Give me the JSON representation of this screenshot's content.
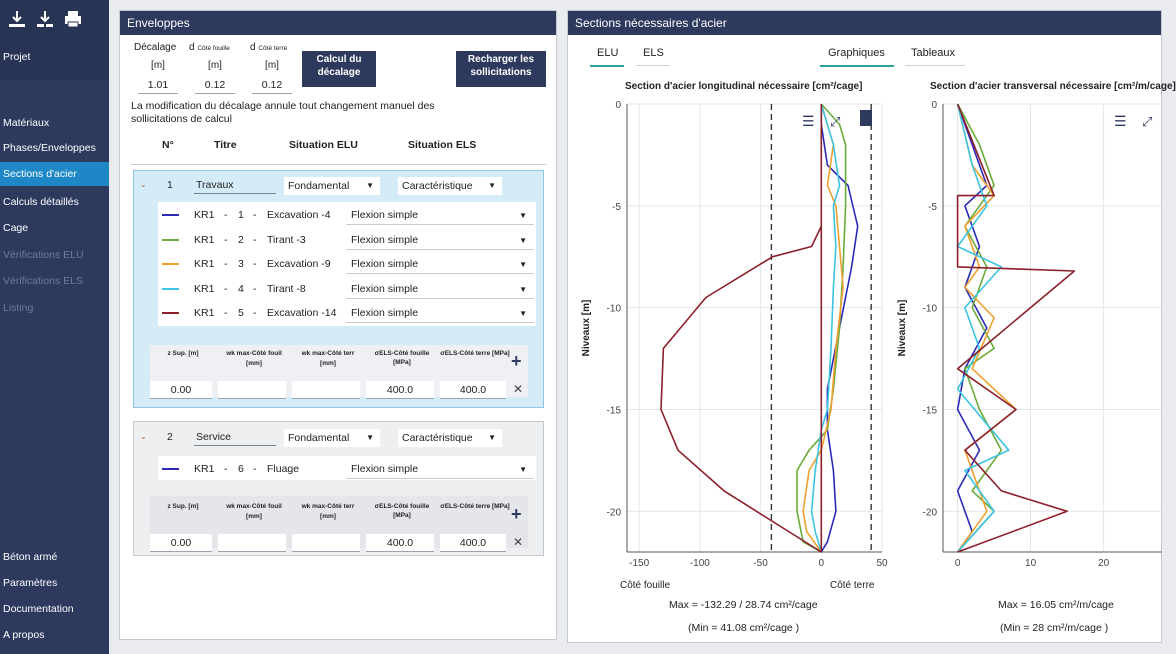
{
  "sidebar": {
    "projet": "Projet",
    "items": [
      {
        "label": "Matériaux",
        "state": "normal"
      },
      {
        "label": "Phases/Enveloppes",
        "state": "normal"
      },
      {
        "label": "Sections d'acier",
        "state": "active"
      },
      {
        "label": "Calculs détaillés",
        "state": "normal"
      },
      {
        "label": "Cage",
        "state": "normal"
      },
      {
        "label": "Vérifications ELU",
        "state": "disabled"
      },
      {
        "label": "Vérifications ELS",
        "state": "disabled"
      },
      {
        "label": "Listing",
        "state": "disabled"
      }
    ],
    "bottom": [
      "Béton armé",
      "Paramètres",
      "Documentation",
      "A propos"
    ]
  },
  "enveloppes": {
    "title": "Enveloppes",
    "decalage_label": "Décalage",
    "d_label": "d",
    "cote_fouille": "Côté fouille",
    "cote_terre": "Côté terre",
    "unit": "[m]",
    "values": [
      "1.01",
      "0.12",
      "0.12"
    ],
    "calc_button": "Calcul du décalage",
    "reload_button": "Recharger les sollicitations",
    "warning": "La modification du décalage annule tout changement manuel des sollicitations de calcul",
    "headers": {
      "n": "N°",
      "titre": "Titre",
      "elu": "Situation ELU",
      "els": "Situation ELS"
    },
    "phases": [
      {
        "n": "1",
        "titre": "Travaux",
        "elu": "Fondamental",
        "els": "Caractéristique",
        "rows": [
          {
            "code": "KR1",
            "sep": "-",
            "num": "1",
            "name": "Excavation -4",
            "type": "Flexion simple",
            "color": "#2b2bb8"
          },
          {
            "code": "KR1",
            "sep": "-",
            "num": "2",
            "name": "Tirant -3",
            "type": "Flexion simple",
            "color": "#6aab3a"
          },
          {
            "code": "KR1",
            "sep": "-",
            "num": "3",
            "name": "Excavation -9",
            "type": "Flexion simple",
            "color": "#f0a030"
          },
          {
            "code": "KR1",
            "sep": "-",
            "num": "4",
            "name": "Tirant -8",
            "type": "Flexion simple",
            "color": "#3cc4e0"
          },
          {
            "code": "KR1",
            "sep": "-",
            "num": "5",
            "name": "Excavation -14",
            "type": "Flexion simple",
            "color": "#8b1f2a"
          }
        ],
        "table": {
          "z": "z Sup. [m]",
          "w1": "wk max-Côté fouil",
          "w2": "wk max-Côté terr",
          "s1": "σELS-Côté fouille [MPa]",
          "s2": "σELS-Côté terre [MPa]",
          "wunit": "[mm]",
          "vals": [
            "0.00",
            "",
            "",
            "400.0",
            "400.0"
          ]
        }
      },
      {
        "n": "2",
        "titre": "Service",
        "elu": "Fondamental",
        "els": "Caractéristique",
        "rows": [
          {
            "code": "KR1",
            "sep": "-",
            "num": "6",
            "name": "Fluage",
            "type": "Flexion simple",
            "color": "#2b2bb8"
          }
        ],
        "table": {
          "z": "z Sup. [m]",
          "w1": "wk max-Côté fouil",
          "w2": "wk max-Côté terr",
          "s1": "σELS-Côté fouille [MPa]",
          "s2": "σELS-Côté terre [MPa]",
          "wunit": "[mm]",
          "vals": [
            "0.00",
            "",
            "",
            "400.0",
            "400.0"
          ]
        }
      }
    ]
  },
  "sections": {
    "title": "Sections nécessaires d'acier",
    "tabs": [
      "ELU",
      "ELS"
    ],
    "view_tabs": [
      "Graphiques",
      "Tableaux"
    ],
    "left_chart": {
      "title": "Section d'acier longitudinal nécessaire [cm²/cage]",
      "ylabel": "Niveaux [m]",
      "left_caption": "Côté fouille",
      "right_caption": "Côté terre",
      "max_line": "Max = -132.29 / 28.74 cm²/cage",
      "min_line": "(Min = 41.08 cm²/cage )"
    },
    "right_chart": {
      "title": "Section d'acier transversal nécessaire [cm²/m/cage]",
      "ylabel": "Niveaux [m]",
      "max_line": "Max = 16.05 cm²/m/cage",
      "min_line": "(Min = 28 cm²/m/cage )"
    }
  },
  "chart_data": [
    {
      "type": "line",
      "title": "Section d'acier longitudinal nécessaire [cm²/cage]",
      "xlabel": "",
      "ylabel": "Niveaux [m]",
      "xlim": [
        -160,
        50
      ],
      "ylim": [
        -22,
        0
      ],
      "xticks": [
        -150,
        -100,
        -50,
        0,
        50
      ],
      "yticks": [
        0,
        -5,
        -10,
        -15,
        -20
      ],
      "limits": [
        -41.08,
        41.08
      ],
      "series": [
        {
          "name": "KR1-1",
          "color": "#2b2bb8",
          "x": [
            0,
            0,
            5,
            22,
            30,
            25,
            15,
            5,
            5,
            10,
            12,
            5,
            0
          ],
          "y": [
            0,
            -1,
            -3,
            -4,
            -6,
            -8,
            -11,
            -14,
            -16,
            -18,
            -20,
            -21.5,
            -22
          ]
        },
        {
          "name": "KR1-2",
          "color": "#6aab3a",
          "x": [
            0,
            15,
            20,
            20,
            18,
            15,
            10,
            5,
            -10,
            -20,
            -20,
            -15,
            0
          ],
          "y": [
            0,
            -1,
            -2,
            -5,
            -8,
            -11,
            -14,
            -16,
            -17,
            -18,
            -20,
            -21.5,
            -22
          ]
        },
        {
          "name": "KR1-3",
          "color": "#f0a030",
          "x": [
            0,
            10,
            5,
            12,
            18,
            12,
            8,
            0,
            -10,
            -15,
            -12,
            0
          ],
          "y": [
            0,
            -2,
            -4,
            -5,
            -9,
            -12,
            -15,
            -17,
            -18,
            -20,
            -21,
            -22
          ]
        },
        {
          "name": "KR1-4",
          "color": "#3cc4e0",
          "x": [
            0,
            10,
            15,
            10,
            12,
            10,
            8,
            5,
            0,
            -5,
            -8,
            -5,
            0
          ],
          "y": [
            0,
            -2,
            -4,
            -5,
            -7,
            -9,
            -12,
            -15,
            -16,
            -18,
            -20,
            -21,
            -22
          ]
        },
        {
          "name": "KR1-5",
          "color": "#8b1f2a",
          "x": [
            0,
            0,
            -8,
            -40,
            -95,
            -130,
            -132,
            -118,
            -80,
            -40,
            0,
            0
          ],
          "y": [
            0,
            -6,
            -7,
            -7.5,
            -9.5,
            -12,
            -15,
            -17,
            -19,
            -20.5,
            -22,
            0
          ]
        }
      ]
    },
    {
      "type": "line",
      "title": "Section d'acier transversal nécessaire [cm²/m/cage]",
      "xlabel": "",
      "ylabel": "Niveaux [m]",
      "xlim": [
        -2,
        28
      ],
      "ylim": [
        -22,
        0
      ],
      "xticks": [
        0,
        10,
        20
      ],
      "yticks": [
        0,
        -5,
        -10,
        -15,
        -20
      ],
      "series": [
        {
          "name": "KR1-1",
          "color": "#2b2bb8",
          "x": [
            0,
            2,
            4,
            1,
            3,
            1,
            4,
            1,
            0,
            3,
            0,
            2,
            0
          ],
          "y": [
            0,
            -2,
            -4,
            -5,
            -7,
            -9,
            -11,
            -13,
            -15,
            -17,
            -19,
            -21,
            -22
          ]
        },
        {
          "name": "KR1-2",
          "color": "#6aab3a",
          "x": [
            0,
            3,
            5,
            1,
            4,
            2,
            5,
            1,
            3,
            6,
            2,
            5,
            0
          ],
          "y": [
            0,
            -2,
            -4,
            -6,
            -8,
            -10,
            -12,
            -13,
            -15,
            -17,
            -19,
            -20,
            -22
          ]
        },
        {
          "name": "KR1-3",
          "color": "#f0a030",
          "x": [
            0,
            2,
            5,
            1,
            3,
            1,
            5,
            2,
            8,
            1,
            4,
            0
          ],
          "y": [
            0,
            -3,
            -4.5,
            -6,
            -8,
            -9,
            -10.5,
            -13,
            -15,
            -17,
            -20,
            -22
          ]
        },
        {
          "name": "KR1-4",
          "color": "#3cc4e0",
          "x": [
            0,
            2,
            4,
            0,
            6,
            1,
            3,
            0,
            7,
            1,
            5,
            0
          ],
          "y": [
            0,
            -3,
            -5,
            -7,
            -8,
            -10,
            -12,
            -14,
            -17,
            -18,
            -20,
            -22
          ]
        },
        {
          "name": "KR1-5",
          "color": "#8b1f2a",
          "x": [
            0,
            5,
            0,
            0,
            16,
            0,
            8,
            1,
            6,
            15,
            0
          ],
          "y": [
            0,
            -4.5,
            -4.5,
            -8,
            -8.2,
            -13,
            -15,
            -17,
            -19,
            -20,
            -22
          ]
        }
      ]
    }
  ]
}
